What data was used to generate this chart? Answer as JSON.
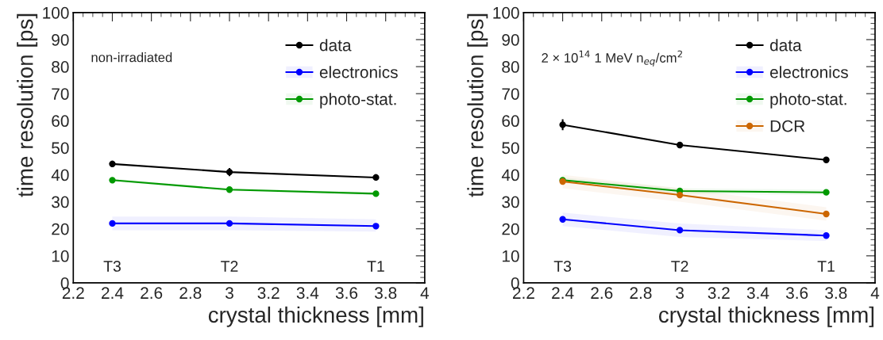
{
  "chart_data": [
    {
      "type": "line",
      "xlabel": "crystal thickness [mm]",
      "ylabel": "time resolution [ps]",
      "x": [
        2.4,
        3,
        3.75
      ],
      "xlim": [
        2.2,
        4
      ],
      "xticks": [
        2.2,
        2.4,
        2.6,
        2.8,
        3,
        3.2,
        3.4,
        3.6,
        3.8,
        4
      ],
      "ylim": [
        0,
        100
      ],
      "yticks": [
        0,
        10,
        20,
        30,
        40,
        50,
        60,
        70,
        80,
        90,
        100
      ],
      "grid": false,
      "legend": "top right",
      "marker": "circle",
      "line_style": "solid",
      "series": [
        {
          "name": "data",
          "color": "#000000",
          "values": [
            44,
            41,
            39
          ],
          "errors": [
            1.2,
            1.5,
            1.2
          ]
        },
        {
          "name": "electronics",
          "color": "#0000ff",
          "values": [
            22,
            22,
            21
          ],
          "lower": [
            19.5,
            19.5,
            19
          ],
          "upper": [
            24.5,
            24.5,
            23.5
          ]
        },
        {
          "name": "photo-stat.",
          "color": "#009900",
          "values": [
            38,
            34.5,
            33
          ],
          "lower": [
            37.5,
            34,
            32.5
          ],
          "upper": [
            38.5,
            35,
            33.5
          ]
        }
      ],
      "annotations": [
        "non-irradiated",
        "T3",
        "T2",
        "T1"
      ]
    },
    {
      "type": "line",
      "xlabel": "crystal thickness [mm]",
      "ylabel": "time resolution [ps]",
      "x": [
        2.4,
        3,
        3.75
      ],
      "xlim": [
        2.2,
        4
      ],
      "xticks": [
        2.2,
        2.4,
        2.6,
        2.8,
        3,
        3.2,
        3.4,
        3.6,
        3.8,
        4
      ],
      "ylim": [
        0,
        100
      ],
      "yticks": [
        0,
        10,
        20,
        30,
        40,
        50,
        60,
        70,
        80,
        90,
        100
      ],
      "grid": false,
      "legend": "top right",
      "marker": "circle",
      "line_style": "solid",
      "series": [
        {
          "name": "data",
          "color": "#000000",
          "values": [
            58.5,
            51,
            45.5
          ],
          "errors": [
            2,
            1.2,
            1
          ]
        },
        {
          "name": "electronics",
          "color": "#0000ff",
          "values": [
            23.5,
            19.5,
            17.5
          ],
          "lower": [
            21,
            17,
            15.5
          ],
          "upper": [
            26,
            22,
            19.5
          ]
        },
        {
          "name": "photo-stat.",
          "color": "#009900",
          "values": [
            38,
            34,
            33.5
          ],
          "lower": [
            37,
            33,
            32.5
          ],
          "upper": [
            39,
            35,
            34.5
          ]
        },
        {
          "name": "DCR",
          "color": "#cc6600",
          "values": [
            37.5,
            32.5,
            25.5
          ],
          "lower": [
            35,
            30,
            23
          ],
          "upper": [
            40,
            35,
            28
          ]
        }
      ],
      "annotations": [
        "2 × 10$^{14}$ 1 MeV n$_{eq}$/cm$^{2}$",
        "T3",
        "T2",
        "T1"
      ]
    }
  ]
}
